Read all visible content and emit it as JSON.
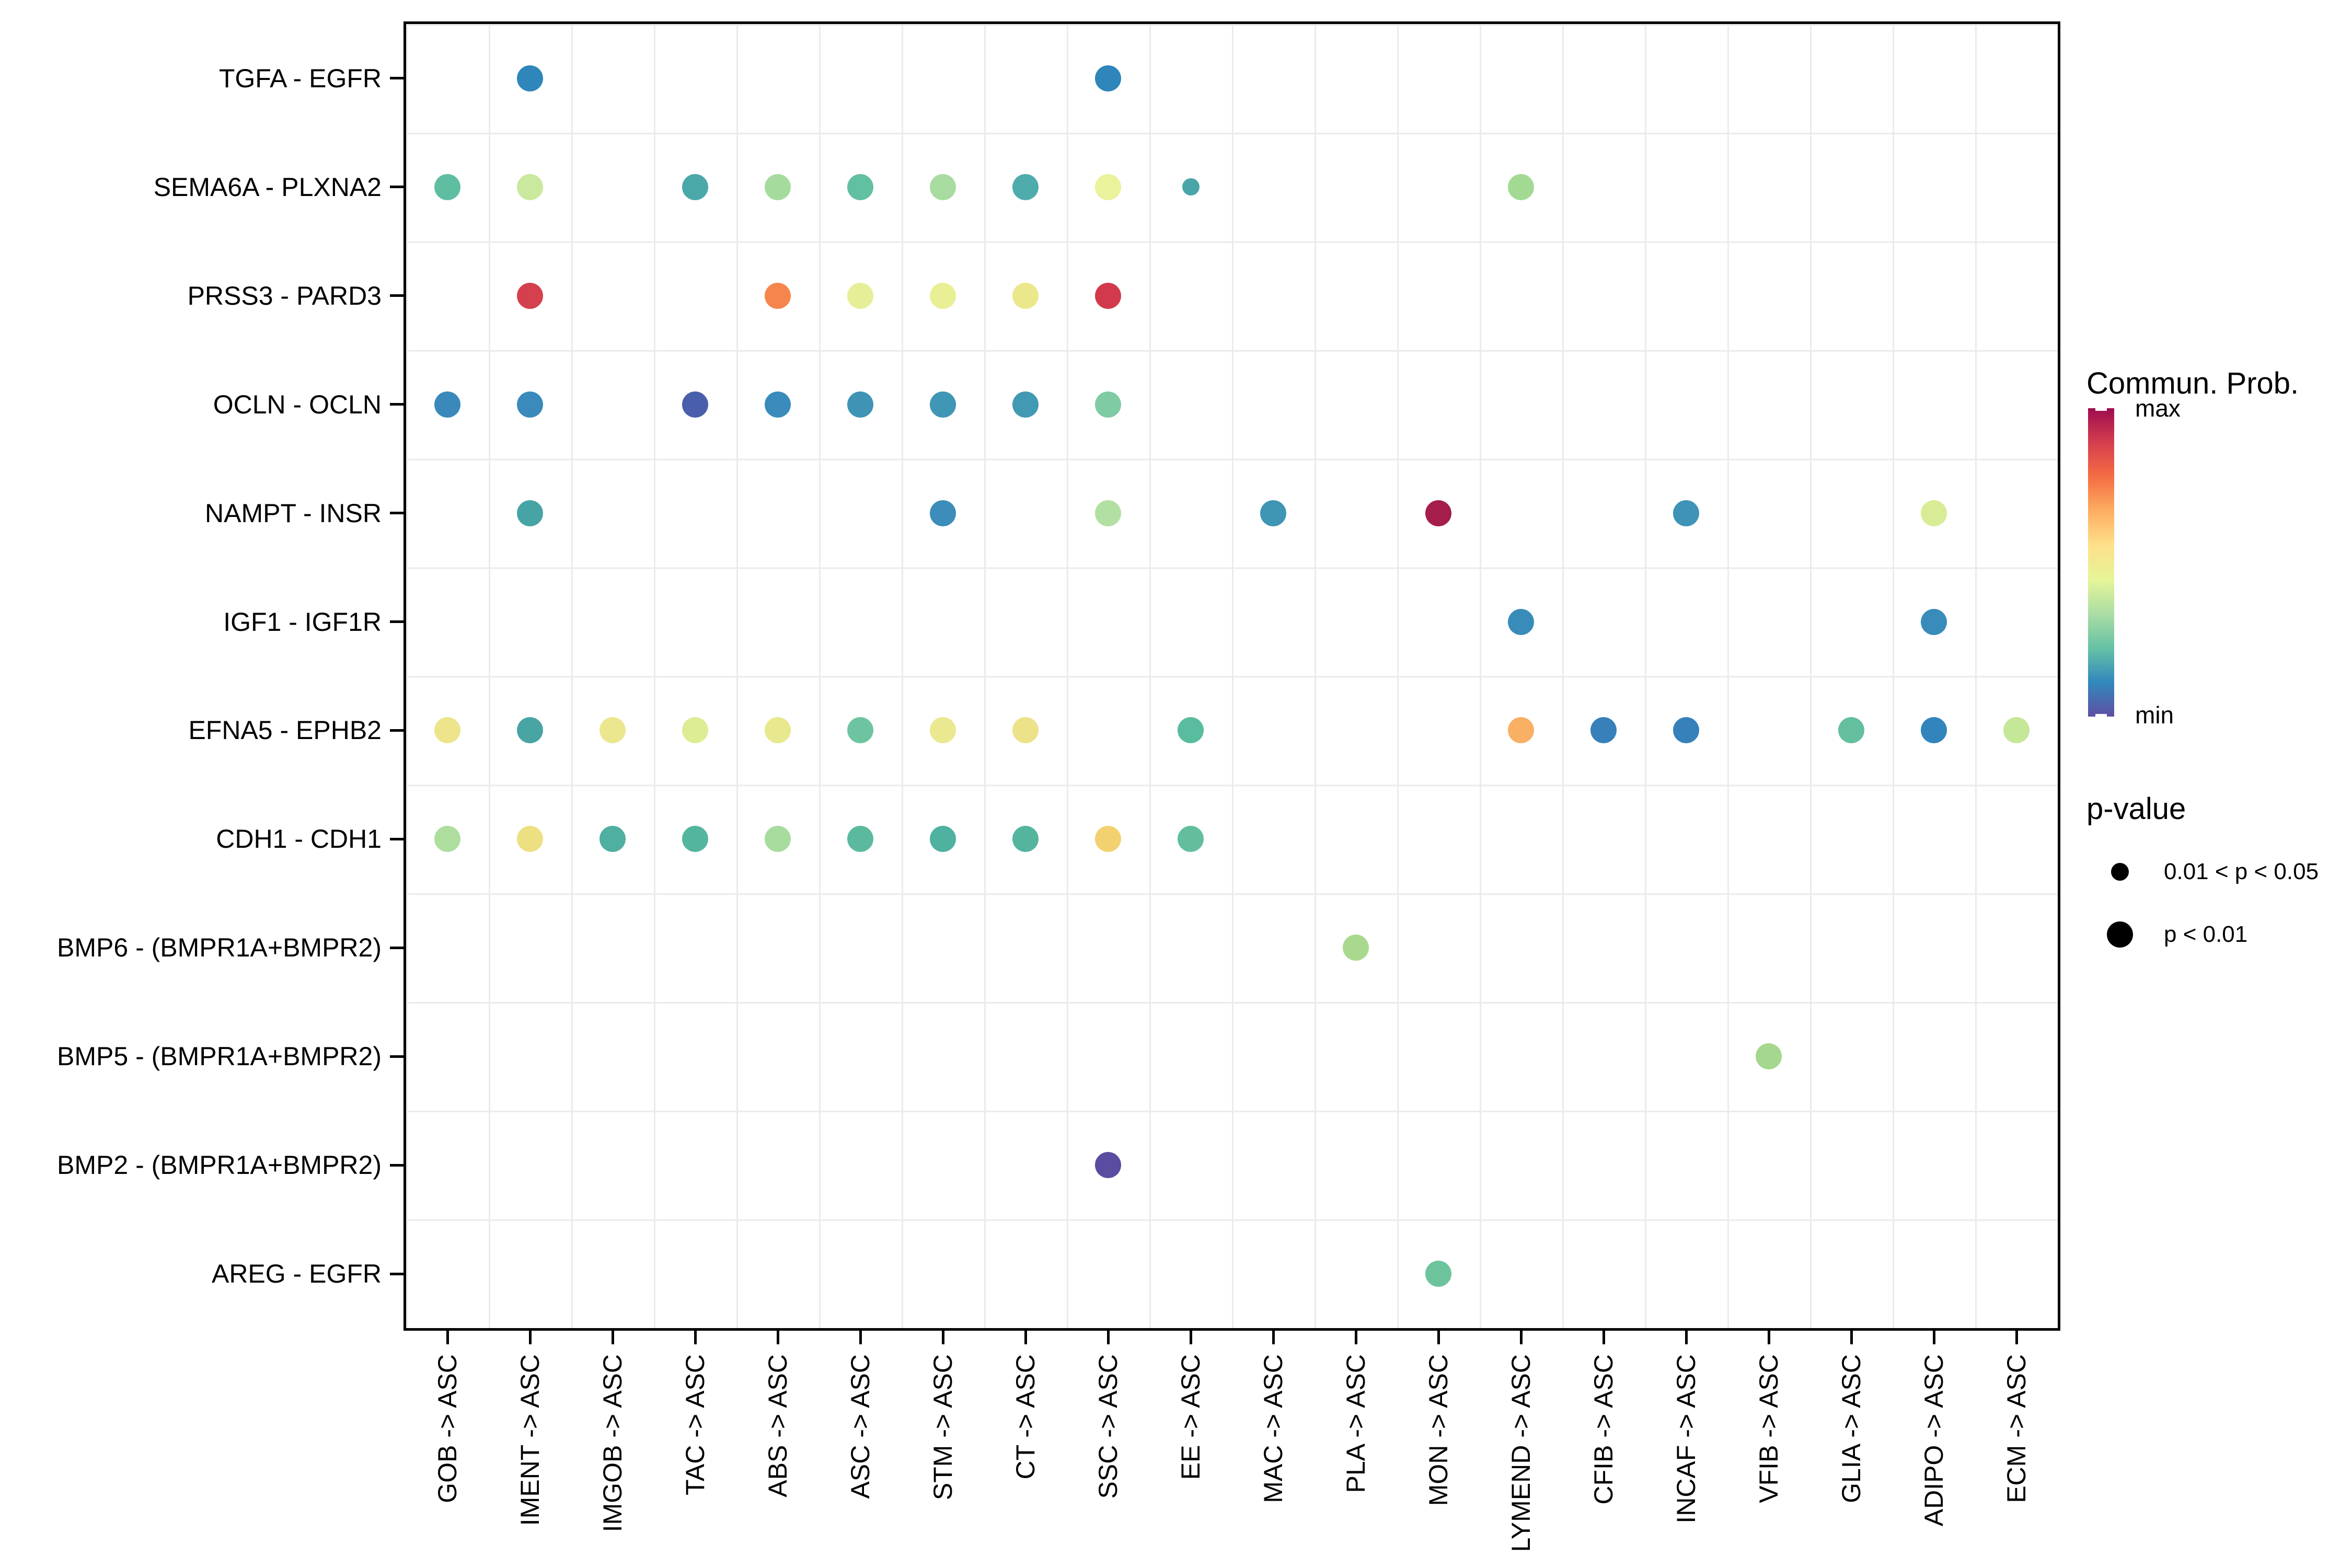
{
  "chart_data": {
    "type": "scatter",
    "subtype": "bubble-dot-plot (ligand-receptor cell communication)",
    "title": "",
    "xlabel": "",
    "ylabel": "",
    "grid": "light gray lines at cell boundaries, black panel border, white background",
    "x_label_rotation": -90,
    "x_categories": [
      "GOB -> ASC",
      "IMENT -> ASC",
      "IMGOB -> ASC",
      "TAC -> ASC",
      "ABS -> ASC",
      "ASC -> ASC",
      "STM -> ASC",
      "CT -> ASC",
      "SSC -> ASC",
      "EE -> ASC",
      "MAC -> ASC",
      "PLA -> ASC",
      "MON -> ASC",
      "LYMEND -> ASC",
      "CFIB -> ASC",
      "INCAF -> ASC",
      "VFIB -> ASC",
      "GLIA -> ASC",
      "ADIPO -> ASC",
      "ECM -> ASC"
    ],
    "y_categories": [
      "TGFA - EGFR",
      "SEMA6A - PLXNA2",
      "PRSS3 - PARD3",
      "OCLN - OCLN",
      "NAMPT - INSR",
      "IGF1 - IGF1R",
      "EFNA5 - EPHB2",
      "CDH1 - CDH1",
      "BMP6 - (BMPR1A+BMPR2)",
      "BMP5 - (BMPR1A+BMPR2)",
      "BMP2 - (BMPR1A+BMPR2)",
      "AREG - EGFR"
    ],
    "points": [
      {
        "y": "TGFA - EGFR",
        "x": "IMENT -> ASC",
        "color": "#2E86BB",
        "p": "p < 0.01"
      },
      {
        "y": "TGFA - EGFR",
        "x": "SSC -> ASC",
        "color": "#2E86BB",
        "p": "p < 0.01"
      },
      {
        "y": "SEMA6A - PLXNA2",
        "x": "GOB -> ASC",
        "color": "#5FBEA1",
        "p": "p < 0.01"
      },
      {
        "y": "SEMA6A - PLXNA2",
        "x": "IMENT -> ASC",
        "color": "#CBE99E",
        "p": "p < 0.01"
      },
      {
        "y": "SEMA6A - PLXNA2",
        "x": "TAC -> ASC",
        "color": "#4BA8A9",
        "p": "p < 0.01"
      },
      {
        "y": "SEMA6A - PLXNA2",
        "x": "ABS -> ASC",
        "color": "#A6DB9E",
        "p": "p < 0.01"
      },
      {
        "y": "SEMA6A - PLXNA2",
        "x": "ASC -> ASC",
        "color": "#62C0A2",
        "p": "p < 0.01"
      },
      {
        "y": "SEMA6A - PLXNA2",
        "x": "STM -> ASC",
        "color": "#A8DCA0",
        "p": "p < 0.01"
      },
      {
        "y": "SEMA6A - PLXNA2",
        "x": "CT -> ASC",
        "color": "#4FACAC",
        "p": "p < 0.01"
      },
      {
        "y": "SEMA6A - PLXNA2",
        "x": "SSC -> ASC",
        "color": "#EAF29B",
        "p": "p < 0.01"
      },
      {
        "y": "SEMA6A - PLXNA2",
        "x": "EE -> ASC",
        "color": "#49A5A7",
        "p": "0.01 < p < 0.05"
      },
      {
        "y": "SEMA6A - PLXNA2",
        "x": "LYMEND -> ASC",
        "color": "#A3DA93",
        "p": "p < 0.01"
      },
      {
        "y": "PRSS3 - PARD3",
        "x": "IMENT -> ASC",
        "color": "#D4404E",
        "p": "p < 0.01"
      },
      {
        "y": "PRSS3 - PARD3",
        "x": "ABS -> ASC",
        "color": "#F5854C",
        "p": "p < 0.01"
      },
      {
        "y": "PRSS3 - PARD3",
        "x": "ASC -> ASC",
        "color": "#E6EF97",
        "p": "p < 0.01"
      },
      {
        "y": "PRSS3 - PARD3",
        "x": "STM -> ASC",
        "color": "#E8EF94",
        "p": "p < 0.01"
      },
      {
        "y": "PRSS3 - PARD3",
        "x": "CT -> ASC",
        "color": "#EBE88C",
        "p": "p < 0.01"
      },
      {
        "y": "PRSS3 - PARD3",
        "x": "SSC -> ASC",
        "color": "#D23A4B",
        "p": "p < 0.01"
      },
      {
        "y": "OCLN - OCLN",
        "x": "GOB -> ASC",
        "color": "#3A89BA",
        "p": "p < 0.01"
      },
      {
        "y": "OCLN - OCLN",
        "x": "IMENT -> ASC",
        "color": "#3A8ABB",
        "p": "p < 0.01"
      },
      {
        "y": "OCLN - OCLN",
        "x": "TAC -> ASC",
        "color": "#4A5FAB",
        "p": "p < 0.01"
      },
      {
        "y": "OCLN - OCLN",
        "x": "ABS -> ASC",
        "color": "#3A8BBC",
        "p": "p < 0.01"
      },
      {
        "y": "OCLN - OCLN",
        "x": "ASC -> ASC",
        "color": "#3F94B6",
        "p": "p < 0.01"
      },
      {
        "y": "OCLN - OCLN",
        "x": "STM -> ASC",
        "color": "#3F96B5",
        "p": "p < 0.01"
      },
      {
        "y": "OCLN - OCLN",
        "x": "CT -> ASC",
        "color": "#4199B3",
        "p": "p < 0.01"
      },
      {
        "y": "OCLN - OCLN",
        "x": "SSC -> ASC",
        "color": "#7FCBA3",
        "p": "p < 0.01"
      },
      {
        "y": "NAMPT - INSR",
        "x": "IMENT -> ASC",
        "color": "#47A4A5",
        "p": "p < 0.01"
      },
      {
        "y": "NAMPT - INSR",
        "x": "STM -> ASC",
        "color": "#3C8DB9",
        "p": "p < 0.01"
      },
      {
        "y": "NAMPT - INSR",
        "x": "SSC -> ASC",
        "color": "#B2E0A2",
        "p": "p < 0.01"
      },
      {
        "y": "NAMPT - INSR",
        "x": "MAC -> ASC",
        "color": "#3F95B4",
        "p": "p < 0.01"
      },
      {
        "y": "NAMPT - INSR",
        "x": "MON -> ASC",
        "color": "#A41D4B",
        "p": "p < 0.01"
      },
      {
        "y": "NAMPT - INSR",
        "x": "INCAF -> ASC",
        "color": "#3E93B6",
        "p": "p < 0.01"
      },
      {
        "y": "NAMPT - INSR",
        "x": "ADIPO -> ASC",
        "color": "#D8EC95",
        "p": "p < 0.01"
      },
      {
        "y": "IGF1 - IGF1R",
        "x": "LYMEND -> ASC",
        "color": "#398CBA",
        "p": "p < 0.01"
      },
      {
        "y": "IGF1 - IGF1R",
        "x": "ADIPO -> ASC",
        "color": "#398CBA",
        "p": "p < 0.01"
      },
      {
        "y": "EFNA5 - EPHB2",
        "x": "GOB -> ASC",
        "color": "#EDE48B",
        "p": "p < 0.01"
      },
      {
        "y": "EFNA5 - EPHB2",
        "x": "IMENT -> ASC",
        "color": "#48A5A3",
        "p": "p < 0.01"
      },
      {
        "y": "EFNA5 - EPHB2",
        "x": "IMGOB -> ASC",
        "color": "#EAE78F",
        "p": "p < 0.01"
      },
      {
        "y": "EFNA5 - EPHB2",
        "x": "TAC -> ASC",
        "color": "#DCED94",
        "p": "p < 0.01"
      },
      {
        "y": "EFNA5 - EPHB2",
        "x": "ABS -> ASC",
        "color": "#E8E88E",
        "p": "p < 0.01"
      },
      {
        "y": "EFNA5 - EPHB2",
        "x": "ASC -> ASC",
        "color": "#6EC4A1",
        "p": "p < 0.01"
      },
      {
        "y": "EFNA5 - EPHB2",
        "x": "STM -> ASC",
        "color": "#EAE890",
        "p": "p < 0.01"
      },
      {
        "y": "EFNA5 - EPHB2",
        "x": "CT -> ASC",
        "color": "#ECE289",
        "p": "p < 0.01"
      },
      {
        "y": "EFNA5 - EPHB2",
        "x": "EE -> ASC",
        "color": "#59BC9F",
        "p": "p < 0.01"
      },
      {
        "y": "EFNA5 - EPHB2",
        "x": "LYMEND -> ASC",
        "color": "#F9B064",
        "p": "p < 0.01"
      },
      {
        "y": "EFNA5 - EPHB2",
        "x": "CFIB -> ASC",
        "color": "#3780B9",
        "p": "p < 0.01"
      },
      {
        "y": "EFNA5 - EPHB2",
        "x": "INCAF -> ASC",
        "color": "#3781BA",
        "p": "p < 0.01"
      },
      {
        "y": "EFNA5 - EPHB2",
        "x": "GLIA -> ASC",
        "color": "#64BF9F",
        "p": "p < 0.01"
      },
      {
        "y": "EFNA5 - EPHB2",
        "x": "ADIPO -> ASC",
        "color": "#3285BC",
        "p": "p < 0.01"
      },
      {
        "y": "EFNA5 - EPHB2",
        "x": "ECM -> ASC",
        "color": "#C5E798",
        "p": "p < 0.01"
      },
      {
        "y": "CDH1 - CDH1",
        "x": "GOB -> ASC",
        "color": "#ADDE9E",
        "p": "p < 0.01"
      },
      {
        "y": "CDH1 - CDH1",
        "x": "IMENT -> ASC",
        "color": "#EDE083",
        "p": "p < 0.01"
      },
      {
        "y": "CDH1 - CDH1",
        "x": "IMGOB -> ASC",
        "color": "#4FAFA0",
        "p": "p < 0.01"
      },
      {
        "y": "CDH1 - CDH1",
        "x": "TAC -> ASC",
        "color": "#54B59E",
        "p": "p < 0.01"
      },
      {
        "y": "CDH1 - CDH1",
        "x": "ABS -> ASC",
        "color": "#A8DC9E",
        "p": "p < 0.01"
      },
      {
        "y": "CDH1 - CDH1",
        "x": "ASC -> ASC",
        "color": "#5BBA9E",
        "p": "p < 0.01"
      },
      {
        "y": "CDH1 - CDH1",
        "x": "STM -> ASC",
        "color": "#4FB1A0",
        "p": "p < 0.01"
      },
      {
        "y": "CDH1 - CDH1",
        "x": "CT -> ASC",
        "color": "#55B49E",
        "p": "p < 0.01"
      },
      {
        "y": "CDH1 - CDH1",
        "x": "SSC -> ASC",
        "color": "#F2D170",
        "p": "p < 0.01"
      },
      {
        "y": "CDH1 - CDH1",
        "x": "EE -> ASC",
        "color": "#62BE9D",
        "p": "p < 0.01"
      },
      {
        "y": "BMP6 - (BMPR1A+BMPR2)",
        "x": "PLA -> ASC",
        "color": "#A9D98F",
        "p": "p < 0.01"
      },
      {
        "y": "BMP5 - (BMPR1A+BMPR2)",
        "x": "VFIB -> ASC",
        "color": "#A5D78F",
        "p": "p < 0.01"
      },
      {
        "y": "BMP2 - (BMPR1A+BMPR2)",
        "x": "SSC -> ASC",
        "color": "#5A4CA1",
        "p": "p < 0.01"
      },
      {
        "y": "AREG - EGFR",
        "x": "MON -> ASC",
        "color": "#6DC49C",
        "p": "p < 0.01"
      }
    ],
    "colorbar": {
      "title": "Commun. Prob.",
      "max_label": "max",
      "min_label": "min",
      "gradient_top_to_bottom": [
        "#9E0C4E",
        "#D53E4F",
        "#F46D43",
        "#FDAE61",
        "#FEE08B",
        "#E6F598",
        "#ABDDA4",
        "#66C2A5",
        "#3288BD",
        "#5E4FA2"
      ]
    },
    "size_legend": {
      "title": "p-value",
      "items": [
        {
          "label": "0.01 < p < 0.05",
          "size": "small"
        },
        {
          "label": "p < 0.01",
          "size": "large"
        }
      ]
    }
  }
}
